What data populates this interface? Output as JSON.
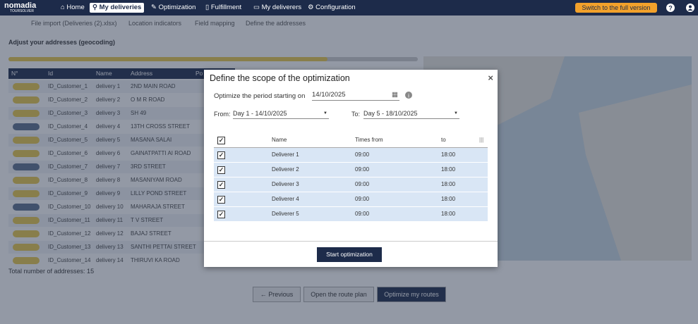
{
  "nav": {
    "logo": "nomadia",
    "logo_sub": "TOURSOLVER",
    "items": [
      "Home",
      "My deliveries",
      "Optimization",
      "Fulfillment",
      "My deliverers",
      "Configuration"
    ],
    "switch": "Switch to the full version"
  },
  "breadcrumbs": [
    "File import (Deliveries (2).xlsx)",
    "Location indicators",
    "Field mapping",
    "Define the addresses"
  ],
  "heading": "Adjust your addresses (geocoding)",
  "table": {
    "headers": [
      "N°",
      "Id",
      "Name",
      "Address",
      "Po"
    ],
    "rows": [
      [
        "ID_Customer_1",
        "delivery 1",
        "2ND MAIN ROAD"
      ],
      [
        "ID_Customer_2",
        "delivery 2",
        "O M R ROAD"
      ],
      [
        "ID_Customer_3",
        "delivery 3",
        "SH 49"
      ],
      [
        "ID_Customer_4",
        "delivery 4",
        "13TH CROSS STREET"
      ],
      [
        "ID_Customer_5",
        "delivery 5",
        "MASANA SALAI"
      ],
      [
        "ID_Customer_6",
        "delivery 6",
        "GAINATPATTI AI ROAD"
      ],
      [
        "ID_Customer_7",
        "delivery 7",
        "3RD STREET"
      ],
      [
        "ID_Customer_8",
        "delivery 8",
        "MASANIYAM ROAD"
      ],
      [
        "ID_Customer_9",
        "delivery 9",
        "LILLY POND STREET"
      ],
      [
        "ID_Customer_10",
        "delivery 10",
        "MAHARAJA STREET"
      ],
      [
        "ID_Customer_11",
        "delivery 11",
        "T V STREET"
      ],
      [
        "ID_Customer_12",
        "delivery 12",
        "BAJAJ STREET"
      ],
      [
        "ID_Customer_13",
        "delivery 13",
        "SANTHI PETTAI STREET"
      ],
      [
        "ID_Customer_14",
        "delivery 14",
        "THIRUVI KA ROAD"
      ]
    ]
  },
  "total": "Total number of addresses: 15",
  "buttons": [
    "← Previous",
    "Open the route plan",
    "Optimize my routes"
  ],
  "modal": {
    "title": "Define the scope of the optimization",
    "period_label": "Optimize the period starting on",
    "period_date": "14/10/2025",
    "from_label": "From:",
    "from_value": "Day 1 - 14/10/2025",
    "to_label": "To:",
    "to_value": "Day 5 - 18/10/2025",
    "table": {
      "headers": [
        "Name",
        "Times from",
        "to"
      ],
      "rows": [
        [
          "Deliverer 1",
          "09:00",
          "18:00"
        ],
        [
          "Deliverer 2",
          "09:00",
          "18:00"
        ],
        [
          "Deliverer 3",
          "09:00",
          "18:00"
        ],
        [
          "Deliverer 4",
          "09:00",
          "18:00"
        ],
        [
          "Deliverer 5",
          "09:00",
          "18:00"
        ]
      ]
    },
    "button": "Start optimization"
  }
}
